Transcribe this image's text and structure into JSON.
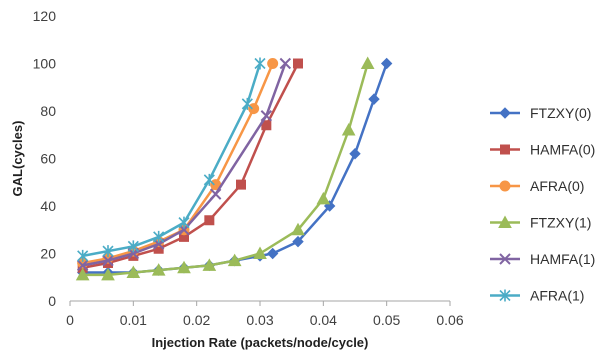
{
  "chart_data": {
    "type": "line",
    "title": "",
    "xlabel": "Injection Rate (packets/node/cycle)",
    "ylabel": "GAL(cycles)",
    "xlim": [
      0,
      0.06
    ],
    "ylim": [
      0,
      120
    ],
    "x_ticks": [
      "0",
      "0.01",
      "0.02",
      "0.03",
      "0.04",
      "0.05",
      "0.06"
    ],
    "y_ticks": [
      "0",
      "20",
      "40",
      "60",
      "80",
      "100",
      "120"
    ],
    "grid": false,
    "legend_position": "right",
    "series": [
      {
        "name": "FTZXY(0)",
        "color": "#4472C4",
        "marker": "diamond",
        "points": [
          [
            0.002,
            12
          ],
          [
            0.006,
            12
          ],
          [
            0.01,
            12
          ],
          [
            0.014,
            13
          ],
          [
            0.018,
            14
          ],
          [
            0.022,
            15
          ],
          [
            0.026,
            17
          ],
          [
            0.03,
            19
          ],
          [
            0.032,
            20
          ],
          [
            0.036,
            25
          ],
          [
            0.041,
            40
          ],
          [
            0.045,
            62
          ],
          [
            0.048,
            85
          ],
          [
            0.05,
            100
          ]
        ]
      },
      {
        "name": "HAMFA(0)",
        "color": "#C0504D",
        "marker": "square",
        "points": [
          [
            0.002,
            14
          ],
          [
            0.006,
            16
          ],
          [
            0.01,
            19
          ],
          [
            0.014,
            22
          ],
          [
            0.018,
            27
          ],
          [
            0.022,
            34
          ],
          [
            0.027,
            49
          ],
          [
            0.031,
            74
          ],
          [
            0.036,
            100
          ]
        ]
      },
      {
        "name": "AFRA(0)",
        "color": "#F79646",
        "marker": "circle",
        "points": [
          [
            0.002,
            16
          ],
          [
            0.006,
            18
          ],
          [
            0.01,
            21
          ],
          [
            0.014,
            25
          ],
          [
            0.018,
            30
          ],
          [
            0.023,
            49
          ],
          [
            0.029,
            81
          ],
          [
            0.032,
            100
          ]
        ]
      },
      {
        "name": "FTZXY(1)",
        "color": "#9BBB59",
        "marker": "triangle",
        "points": [
          [
            0.002,
            11
          ],
          [
            0.006,
            11
          ],
          [
            0.01,
            12
          ],
          [
            0.014,
            13
          ],
          [
            0.018,
            14
          ],
          [
            0.022,
            15
          ],
          [
            0.026,
            17
          ],
          [
            0.03,
            20
          ],
          [
            0.036,
            30
          ],
          [
            0.04,
            43
          ],
          [
            0.044,
            72
          ],
          [
            0.047,
            100
          ]
        ]
      },
      {
        "name": "HAMFA(1)",
        "color": "#8064A2",
        "marker": "x",
        "points": [
          [
            0.002,
            15
          ],
          [
            0.006,
            17
          ],
          [
            0.01,
            20
          ],
          [
            0.014,
            24
          ],
          [
            0.018,
            30
          ],
          [
            0.023,
            45
          ],
          [
            0.031,
            78
          ],
          [
            0.034,
            100
          ]
        ]
      },
      {
        "name": "AFRA(1)",
        "color": "#4BACC6",
        "marker": "star",
        "points": [
          [
            0.002,
            19
          ],
          [
            0.006,
            21
          ],
          [
            0.01,
            23
          ],
          [
            0.014,
            27
          ],
          [
            0.018,
            33
          ],
          [
            0.022,
            51
          ],
          [
            0.028,
            83
          ],
          [
            0.03,
            100
          ]
        ]
      }
    ]
  }
}
